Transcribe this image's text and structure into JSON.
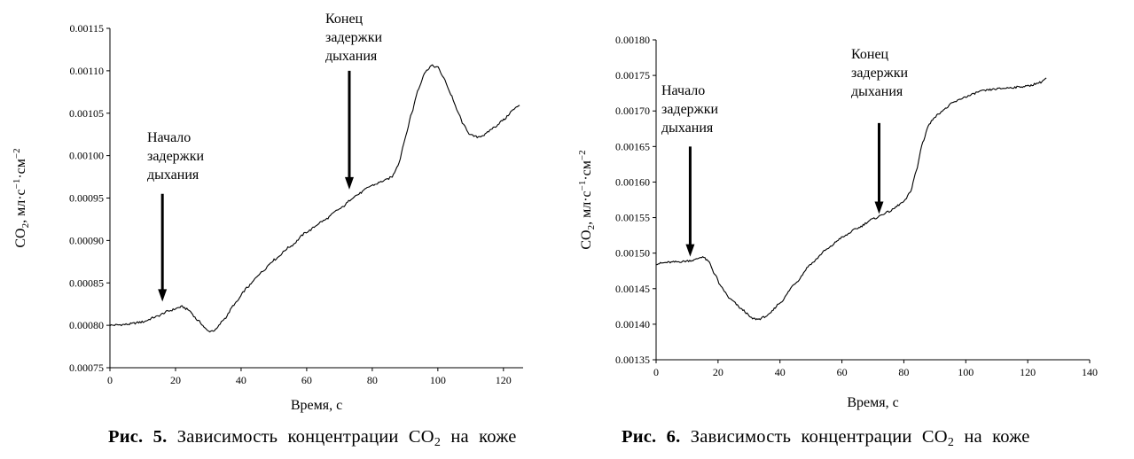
{
  "figures": [
    {
      "id": "fig5",
      "caption_label": "Рис. 5.",
      "caption_text": "Зависимость концентрации CO",
      "caption_sub": "2",
      "caption_tail": "на коже",
      "chart_data": {
        "type": "line",
        "xlabel": "Время, с",
        "ylabel_main": "CO",
        "ylabel_sub": "2",
        "ylabel_unit": "мл·с",
        "ylabel_exp1": "−1",
        "ylabel_unit2": "·см",
        "ylabel_exp2": "−2",
        "xlim": [
          0,
          126
        ],
        "ylim": [
          0.00075,
          0.00115
        ],
        "xticks": [
          0,
          20,
          40,
          60,
          80,
          100,
          120
        ],
        "xtick_labels": [
          "0",
          "20",
          "40",
          "60",
          "80",
          "100",
          "120"
        ],
        "yticks": [
          0.00075,
          0.0008,
          0.00085,
          0.0009,
          0.00095,
          0.001,
          0.00105,
          0.0011,
          0.00115
        ],
        "ytick_labels": [
          "0.00075",
          "0.00080",
          "0.00085",
          "0.00090",
          "0.00095",
          "0.00100",
          "0.00105",
          "0.00110",
          "0.00115"
        ],
        "series": [
          {
            "name": "CO2",
            "x": [
              0,
              5,
              10,
              14,
              18,
              22,
              24,
              27,
              30,
              32,
              35,
              38,
              42,
              46,
              50,
              55,
              60,
              65,
              70,
              75,
              80,
              84,
              86,
              88,
              90,
              92,
              94,
              96,
              98,
              100,
              102,
              104,
              106,
              108,
              110,
              112,
              114,
              117,
              120,
              123,
              125
            ],
            "y": [
              0.0008,
              0.000801,
              0.000804,
              0.00081,
              0.000817,
              0.000822,
              0.000818,
              0.000805,
              0.000793,
              0.000794,
              0.000808,
              0.000825,
              0.000845,
              0.000862,
              0.000877,
              0.000893,
              0.00091,
              0.000923,
              0.000937,
              0.000953,
              0.000965,
              0.000971,
              0.000975,
              0.00099,
              0.00102,
              0.00105,
              0.001078,
              0.001098,
              0.001106,
              0.001104,
              0.00109,
              0.001072,
              0.001052,
              0.001035,
              0.001024,
              0.001022,
              0.001024,
              0.001033,
              0.001042,
              0.001054,
              0.00106
            ]
          }
        ],
        "annotations": [
          {
            "lines": [
              "Начало",
              "задержки",
              "дыхания"
            ],
            "arrow_x": 16,
            "arrow_y_end": 0.000828,
            "arrow_y_start": 0.000955
          },
          {
            "lines": [
              "Конец",
              "задержки",
              "дыхания"
            ],
            "arrow_x": 73,
            "arrow_y_end": 0.00096,
            "arrow_y_start": 0.0011
          }
        ]
      }
    },
    {
      "id": "fig6",
      "caption_label": "Рис. 6.",
      "caption_text": "Зависимость концентрации CO",
      "caption_sub": "2",
      "caption_tail": "на коже",
      "chart_data": {
        "type": "line",
        "xlabel": "Время, с",
        "ylabel_main": "CO",
        "ylabel_sub": "2",
        "ylabel_unit": "мл·с",
        "ylabel_exp1": "−1",
        "ylabel_unit2": "·см",
        "ylabel_exp2": "−2",
        "xlim": [
          0,
          140
        ],
        "ylim": [
          0.00135,
          0.0018
        ],
        "xticks": [
          0,
          20,
          40,
          60,
          80,
          100,
          120,
          140
        ],
        "xtick_labels": [
          "0",
          "20",
          "40",
          "60",
          "80",
          "100",
          "120",
          "140"
        ],
        "yticks": [
          0.00135,
          0.0014,
          0.00145,
          0.0015,
          0.00155,
          0.0016,
          0.00165,
          0.0017,
          0.00175,
          0.0018
        ],
        "ytick_labels": [
          "0.00135",
          "0.00140",
          "0.00145",
          "0.00150",
          "0.00155",
          "0.00160",
          "0.00165",
          "0.00170",
          "0.00175",
          "0.00180"
        ],
        "series": [
          {
            "name": "CO2",
            "x": [
              0,
              4,
              8,
              12,
              15,
              17,
              19,
              21,
              24,
              28,
              31,
              33,
              36,
              40,
              45,
              50,
              55,
              60,
              65,
              70,
              75,
              80,
              82,
              84,
              86,
              88,
              90,
              93,
              96,
              100,
              105,
              110,
              115,
              120,
              124,
              126
            ],
            "y": [
              0.001485,
              0.001487,
              0.001488,
              0.00149,
              0.001495,
              0.001488,
              0.00147,
              0.001452,
              0.001435,
              0.00142,
              0.001408,
              0.001407,
              0.001412,
              0.00143,
              0.001458,
              0.001485,
              0.001505,
              0.001522,
              0.001535,
              0.001548,
              0.001558,
              0.001572,
              0.001585,
              0.001615,
              0.001655,
              0.00168,
              0.001692,
              0.001702,
              0.001712,
              0.00172,
              0.001728,
              0.001731,
              0.001733,
              0.001735,
              0.00174,
              0.001746
            ]
          }
        ],
        "annotations": [
          {
            "lines": [
              "Начало",
              "задержки",
              "дыхания"
            ],
            "arrow_x": 11,
            "arrow_y_end": 0.001495,
            "arrow_y_start": 0.00165
          },
          {
            "lines": [
              "Конец",
              "задержки",
              "дыхания"
            ],
            "arrow_x": 72,
            "arrow_y_end": 0.001555,
            "arrow_y_start": 0.001683
          }
        ]
      }
    }
  ]
}
